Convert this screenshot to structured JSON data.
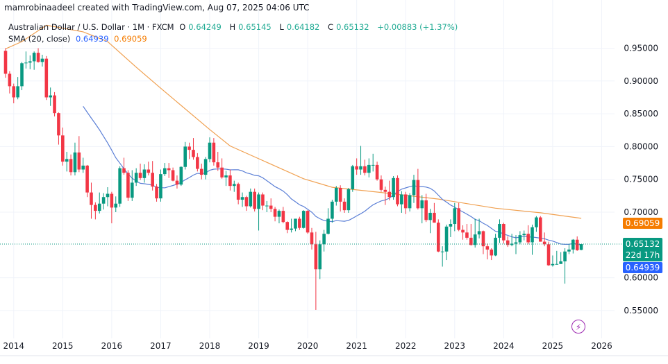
{
  "header": {
    "credit": "mamrobinaadeel created with TradingView.com, Aug 07, 2025 04:06 UTC",
    "symbol": "Australian Dollar / U.S. Dollar · 1M · FXCM",
    "o_label": "O",
    "o": "0.64249",
    "h_label": "H",
    "h": "0.65145",
    "l_label": "L",
    "l": "0.64182",
    "c_label": "C",
    "c": "0.65132",
    "change": "+0.00883 (+1.37%)",
    "sma_label": "SMA (20, close)",
    "sma_value_blue": "0.64939",
    "sma_value_orange": "0.69059"
  },
  "badges": {
    "orange": "0.69059",
    "price": "0.65132",
    "countdown": "22d 17h",
    "blue": "0.64939"
  },
  "icons": {
    "bottom_right": "lightning-icon"
  },
  "colors": {
    "up": "#089981",
    "down": "#f23645",
    "sma_blue": "#5b7fd6",
    "sma_orange": "#f0a050",
    "badge_orange": "#f57c00",
    "badge_green": "#089981",
    "badge_blue": "#2962ff",
    "bolt": "#9c27b0"
  },
  "chart_data": {
    "type": "candlestick",
    "title": "Australian Dollar / U.S. Dollar · 1M · FXCM",
    "ylim": [
      0.525,
      0.985
    ],
    "y_ticks": [
      "0.95000",
      "0.90000",
      "0.85000",
      "0.80000",
      "0.75000",
      "0.70000",
      "0.60000",
      "0.55000"
    ],
    "x_ticks": [
      "2014",
      "2015",
      "2016",
      "2017",
      "2018",
      "2019",
      "2020",
      "2021",
      "2022",
      "2023",
      "2024",
      "2025",
      "2026"
    ],
    "last_price": 0.65132,
    "candles_columns": [
      "month",
      "open",
      "high",
      "low",
      "close"
    ],
    "candles": [
      [
        "2013-11",
        0.946,
        0.95,
        0.905,
        0.911
      ],
      [
        "2013-12",
        0.911,
        0.915,
        0.881,
        0.892
      ],
      [
        "2014-01",
        0.892,
        0.896,
        0.866,
        0.875
      ],
      [
        "2014-02",
        0.875,
        0.906,
        0.872,
        0.892
      ],
      [
        "2014-03",
        0.892,
        0.929,
        0.886,
        0.927
      ],
      [
        "2014-04",
        0.927,
        0.945,
        0.919,
        0.928
      ],
      [
        "2014-05",
        0.928,
        0.939,
        0.918,
        0.93
      ],
      [
        "2014-06",
        0.93,
        0.945,
        0.917,
        0.943
      ],
      [
        "2014-07",
        0.943,
        0.95,
        0.928,
        0.929
      ],
      [
        "2014-08",
        0.929,
        0.94,
        0.922,
        0.934
      ],
      [
        "2014-09",
        0.934,
        0.938,
        0.871,
        0.875
      ],
      [
        "2014-10",
        0.875,
        0.89,
        0.862,
        0.878
      ],
      [
        "2014-11",
        0.878,
        0.883,
        0.846,
        0.851
      ],
      [
        "2014-12",
        0.851,
        0.852,
        0.803,
        0.817
      ],
      [
        "2015-01",
        0.817,
        0.829,
        0.771,
        0.777
      ],
      [
        "2015-02",
        0.777,
        0.792,
        0.762,
        0.781
      ],
      [
        "2015-03",
        0.781,
        0.788,
        0.756,
        0.761
      ],
      [
        "2015-04",
        0.761,
        0.806,
        0.756,
        0.791
      ],
      [
        "2015-05",
        0.791,
        0.816,
        0.761,
        0.765
      ],
      [
        "2015-06",
        0.765,
        0.783,
        0.76,
        0.771
      ],
      [
        "2015-07",
        0.771,
        0.772,
        0.723,
        0.73
      ],
      [
        "2015-08",
        0.73,
        0.745,
        0.69,
        0.711
      ],
      [
        "2015-09",
        0.711,
        0.715,
        0.689,
        0.702
      ],
      [
        "2015-10",
        0.702,
        0.73,
        0.698,
        0.713
      ],
      [
        "2015-11",
        0.713,
        0.729,
        0.704,
        0.723
      ],
      [
        "2015-12",
        0.723,
        0.738,
        0.709,
        0.728
      ],
      [
        "2016-01",
        0.728,
        0.731,
        0.683,
        0.707
      ],
      [
        "2016-02",
        0.707,
        0.724,
        0.7,
        0.713
      ],
      [
        "2016-03",
        0.713,
        0.77,
        0.708,
        0.767
      ],
      [
        "2016-04",
        0.767,
        0.783,
        0.757,
        0.76
      ],
      [
        "2016-05",
        0.76,
        0.764,
        0.717,
        0.722
      ],
      [
        "2016-06",
        0.722,
        0.764,
        0.717,
        0.745
      ],
      [
        "2016-07",
        0.745,
        0.767,
        0.74,
        0.76
      ],
      [
        "2016-08",
        0.76,
        0.774,
        0.749,
        0.752
      ],
      [
        "2016-09",
        0.752,
        0.773,
        0.745,
        0.765
      ],
      [
        "2016-10",
        0.765,
        0.777,
        0.756,
        0.76
      ],
      [
        "2016-11",
        0.76,
        0.778,
        0.733,
        0.739
      ],
      [
        "2016-12",
        0.739,
        0.743,
        0.716,
        0.721
      ],
      [
        "2017-01",
        0.721,
        0.765,
        0.716,
        0.758
      ],
      [
        "2017-02",
        0.758,
        0.775,
        0.755,
        0.767
      ],
      [
        "2017-03",
        0.767,
        0.775,
        0.752,
        0.764
      ],
      [
        "2017-04",
        0.764,
        0.768,
        0.747,
        0.748
      ],
      [
        "2017-05",
        0.748,
        0.756,
        0.736,
        0.742
      ],
      [
        "2017-06",
        0.742,
        0.77,
        0.74,
        0.769
      ],
      [
        "2017-07",
        0.769,
        0.807,
        0.765,
        0.8
      ],
      [
        "2017-08",
        0.8,
        0.806,
        0.781,
        0.795
      ],
      [
        "2017-09",
        0.795,
        0.813,
        0.78,
        0.784
      ],
      [
        "2017-10",
        0.784,
        0.79,
        0.762,
        0.766
      ],
      [
        "2017-11",
        0.766,
        0.774,
        0.75,
        0.757
      ],
      [
        "2017-12",
        0.757,
        0.784,
        0.75,
        0.781
      ],
      [
        "2018-01",
        0.781,
        0.814,
        0.776,
        0.806
      ],
      [
        "2018-02",
        0.806,
        0.813,
        0.771,
        0.776
      ],
      [
        "2018-03",
        0.776,
        0.792,
        0.763,
        0.768
      ],
      [
        "2018-04",
        0.768,
        0.782,
        0.751,
        0.753
      ],
      [
        "2018-05",
        0.753,
        0.763,
        0.74,
        0.756
      ],
      [
        "2018-06",
        0.756,
        0.765,
        0.733,
        0.74
      ],
      [
        "2018-07",
        0.74,
        0.748,
        0.731,
        0.743
      ],
      [
        "2018-08",
        0.743,
        0.745,
        0.712,
        0.719
      ],
      [
        "2018-09",
        0.719,
        0.73,
        0.708,
        0.723
      ],
      [
        "2018-10",
        0.723,
        0.725,
        0.702,
        0.709
      ],
      [
        "2018-11",
        0.709,
        0.736,
        0.707,
        0.731
      ],
      [
        "2018-12",
        0.731,
        0.736,
        0.701,
        0.705
      ],
      [
        "2019-01",
        0.705,
        0.73,
        0.672,
        0.727
      ],
      [
        "2019-02",
        0.727,
        0.73,
        0.703,
        0.71
      ],
      [
        "2019-03",
        0.71,
        0.717,
        0.7,
        0.71
      ],
      [
        "2019-04",
        0.71,
        0.721,
        0.7,
        0.705
      ],
      [
        "2019-05",
        0.705,
        0.708,
        0.686,
        0.693
      ],
      [
        "2019-06",
        0.693,
        0.704,
        0.683,
        0.702
      ],
      [
        "2019-07",
        0.702,
        0.708,
        0.683,
        0.685
      ],
      [
        "2019-08",
        0.685,
        0.686,
        0.668,
        0.673
      ],
      [
        "2019-09",
        0.673,
        0.69,
        0.669,
        0.675
      ],
      [
        "2019-10",
        0.675,
        0.69,
        0.671,
        0.69
      ],
      [
        "2019-11",
        0.69,
        0.693,
        0.673,
        0.676
      ],
      [
        "2019-12",
        0.676,
        0.703,
        0.675,
        0.702
      ],
      [
        "2020-01",
        0.702,
        0.703,
        0.667,
        0.669
      ],
      [
        "2020-02",
        0.669,
        0.676,
        0.643,
        0.651
      ],
      [
        "2020-03",
        0.651,
        0.67,
        0.551,
        0.613
      ],
      [
        "2020-04",
        0.613,
        0.657,
        0.598,
        0.651
      ],
      [
        "2020-05",
        0.651,
        0.673,
        0.64,
        0.667
      ],
      [
        "2020-06",
        0.667,
        0.706,
        0.666,
        0.69
      ],
      [
        "2020-07",
        0.69,
        0.719,
        0.684,
        0.716
      ],
      [
        "2020-08",
        0.716,
        0.74,
        0.71,
        0.737
      ],
      [
        "2020-09",
        0.737,
        0.741,
        0.701,
        0.716
      ],
      [
        "2020-10",
        0.716,
        0.721,
        0.699,
        0.703
      ],
      [
        "2020-11",
        0.703,
        0.737,
        0.699,
        0.735
      ],
      [
        "2020-12",
        0.735,
        0.772,
        0.731,
        0.77
      ],
      [
        "2021-01",
        0.77,
        0.782,
        0.757,
        0.765
      ],
      [
        "2021-02",
        0.765,
        0.801,
        0.757,
        0.77
      ],
      [
        "2021-03",
        0.77,
        0.78,
        0.756,
        0.76
      ],
      [
        "2021-04",
        0.76,
        0.782,
        0.753,
        0.772
      ],
      [
        "2021-05",
        0.772,
        0.789,
        0.762,
        0.772
      ],
      [
        "2021-06",
        0.772,
        0.777,
        0.748,
        0.75
      ],
      [
        "2021-07",
        0.75,
        0.756,
        0.731,
        0.734
      ],
      [
        "2021-08",
        0.734,
        0.739,
        0.711,
        0.731
      ],
      [
        "2021-09",
        0.731,
        0.748,
        0.718,
        0.723
      ],
      [
        "2021-10",
        0.723,
        0.755,
        0.719,
        0.752
      ],
      [
        "2021-11",
        0.752,
        0.756,
        0.709,
        0.712
      ],
      [
        "2021-12",
        0.712,
        0.732,
        0.699,
        0.727
      ],
      [
        "2022-01",
        0.727,
        0.731,
        0.697,
        0.706
      ],
      [
        "2022-02",
        0.706,
        0.729,
        0.701,
        0.726
      ],
      [
        "2022-03",
        0.726,
        0.757,
        0.714,
        0.749
      ],
      [
        "2022-04",
        0.749,
        0.766,
        0.704,
        0.706
      ],
      [
        "2022-05",
        0.706,
        0.726,
        0.683,
        0.718
      ],
      [
        "2022-06",
        0.718,
        0.728,
        0.685,
        0.688
      ],
      [
        "2022-07",
        0.688,
        0.705,
        0.668,
        0.699
      ],
      [
        "2022-08",
        0.699,
        0.714,
        0.684,
        0.684
      ],
      [
        "2022-09",
        0.684,
        0.689,
        0.639,
        0.64
      ],
      [
        "2022-10",
        0.64,
        0.648,
        0.617,
        0.64
      ],
      [
        "2022-11",
        0.64,
        0.681,
        0.627,
        0.678
      ],
      [
        "2022-12",
        0.678,
        0.689,
        0.662,
        0.682
      ],
      [
        "2023-01",
        0.682,
        0.714,
        0.671,
        0.706
      ],
      [
        "2023-02",
        0.706,
        0.714,
        0.671,
        0.673
      ],
      [
        "2023-03",
        0.673,
        0.68,
        0.658,
        0.669
      ],
      [
        "2023-04",
        0.669,
        0.682,
        0.658,
        0.661
      ],
      [
        "2023-05",
        0.661,
        0.682,
        0.649,
        0.65
      ],
      [
        "2023-06",
        0.65,
        0.69,
        0.646,
        0.666
      ],
      [
        "2023-07",
        0.666,
        0.69,
        0.66,
        0.671
      ],
      [
        "2023-08",
        0.671,
        0.672,
        0.636,
        0.648
      ],
      [
        "2023-09",
        0.648,
        0.652,
        0.628,
        0.643
      ],
      [
        "2023-10",
        0.643,
        0.645,
        0.627,
        0.634
      ],
      [
        "2023-11",
        0.634,
        0.667,
        0.633,
        0.661
      ],
      [
        "2023-12",
        0.661,
        0.689,
        0.653,
        0.682
      ],
      [
        "2024-01",
        0.682,
        0.684,
        0.652,
        0.657
      ],
      [
        "2024-02",
        0.657,
        0.663,
        0.647,
        0.65
      ],
      [
        "2024-03",
        0.65,
        0.667,
        0.648,
        0.652
      ],
      [
        "2024-04",
        0.652,
        0.665,
        0.636,
        0.654
      ],
      [
        "2024-05",
        0.654,
        0.671,
        0.651,
        0.665
      ],
      [
        "2024-06",
        0.665,
        0.672,
        0.657,
        0.667
      ],
      [
        "2024-07",
        0.667,
        0.68,
        0.651,
        0.654
      ],
      [
        "2024-08",
        0.654,
        0.681,
        0.635,
        0.677
      ],
      [
        "2024-09",
        0.677,
        0.694,
        0.67,
        0.692
      ],
      [
        "2024-10",
        0.692,
        0.694,
        0.655,
        0.655
      ],
      [
        "2024-11",
        0.655,
        0.669,
        0.648,
        0.651
      ],
      [
        "2024-12",
        0.651,
        0.655,
        0.618,
        0.619
      ],
      [
        "2025-01",
        0.619,
        0.634,
        0.617,
        0.621
      ],
      [
        "2025-02",
        0.621,
        0.641,
        0.62,
        0.621
      ],
      [
        "2025-03",
        0.621,
        0.639,
        0.621,
        0.625
      ],
      [
        "2025-04",
        0.625,
        0.645,
        0.591,
        0.64
      ],
      [
        "2025-05",
        0.64,
        0.652,
        0.636,
        0.643
      ],
      [
        "2025-06",
        0.643,
        0.659,
        0.637,
        0.658
      ],
      [
        "2025-07",
        0.658,
        0.663,
        0.641,
        0.642
      ],
      [
        "2025-08",
        0.64249,
        0.65145,
        0.64182,
        0.65132
      ]
    ],
    "sma_orange": [
      [
        "2013-11",
        0.949
      ],
      [
        "2014-03",
        0.96
      ],
      [
        "2014-09",
        0.985
      ],
      [
        "2015-06",
        0.975
      ],
      [
        "2015-12",
        0.96
      ],
      [
        "2016-07",
        0.921
      ],
      [
        "2017-01",
        0.889
      ],
      [
        "2018-01",
        0.826
      ],
      [
        "2018-06",
        0.801
      ],
      [
        "2019-12",
        0.751
      ],
      [
        "2020-07",
        0.738
      ],
      [
        "2021-07",
        0.73
      ],
      [
        "2022-09",
        0.72
      ],
      [
        "2023-11",
        0.706
      ],
      [
        "2024-10",
        0.699
      ],
      [
        "2025-08",
        0.69059
      ]
    ],
    "sma_blue_period": 20
  }
}
